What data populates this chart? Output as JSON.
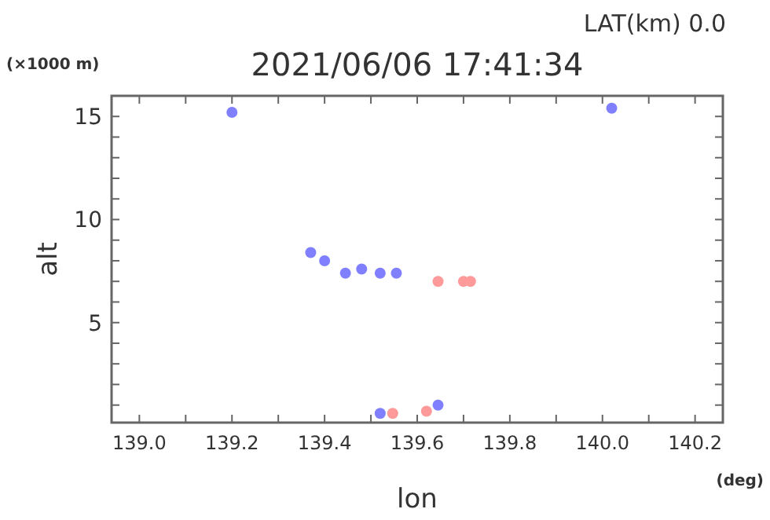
{
  "chart_data": {
    "type": "scatter",
    "title": "2021/06/06 17:41:34",
    "subtitle": "LAT(km) 0.0",
    "xlabel": "lon",
    "ylabel": "alt",
    "annotations": [
      "(×1000 m)",
      "(deg)"
    ],
    "xlim": [
      138.94,
      140.26
    ],
    "xticks": [
      {
        "value": 139.0,
        "label": "139.0"
      },
      {
        "value": 139.1,
        "label": null
      },
      {
        "value": 139.2,
        "label": "139.2"
      },
      {
        "value": 139.3,
        "label": null
      },
      {
        "value": 139.4,
        "label": "139.4"
      },
      {
        "value": 139.5,
        "label": null
      },
      {
        "value": 139.6,
        "label": "139.6"
      },
      {
        "value": 139.7,
        "label": null
      },
      {
        "value": 139.8,
        "label": "139.8"
      },
      {
        "value": 139.9,
        "label": null
      },
      {
        "value": 140.0,
        "label": "140.0"
      },
      {
        "value": 140.1,
        "label": null
      },
      {
        "value": 140.2,
        "label": "140.2"
      }
    ],
    "ylim": [
      0.15,
      16
    ],
    "yticks": [
      {
        "value": 1,
        "label": null
      },
      {
        "value": 2,
        "label": null
      },
      {
        "value": 3,
        "label": null
      },
      {
        "value": 4,
        "label": null
      },
      5,
      {
        "value": 6,
        "label": null
      },
      {
        "value": 7,
        "label": null
      },
      {
        "value": 8,
        "label": null
      },
      {
        "value": 9,
        "label": null
      },
      10,
      {
        "value": 11,
        "label": null
      },
      {
        "value": 12,
        "label": null
      },
      {
        "value": 13,
        "label": null
      },
      {
        "value": 14,
        "label": null
      },
      15,
      {
        "value": 16,
        "label": null
      }
    ],
    "grid": false,
    "marker": "circle",
    "series": [
      {
        "color": "#8080ff",
        "x": [
          139.37,
          139.4,
          139.445,
          139.48,
          139.52,
          139.555,
          139.52,
          139.645,
          139.2,
          140.02
        ],
        "values": [
          8.4,
          8.0,
          7.4,
          7.6,
          7.4,
          7.4,
          0.6,
          1.0,
          15.2,
          15.4
        ]
      },
      {
        "color": "#ff9a9a",
        "x": [
          139.645,
          139.7,
          139.715,
          139.547,
          139.62
        ],
        "values": [
          7.0,
          7.0,
          7.0,
          0.6,
          0.7
        ]
      }
    ]
  }
}
